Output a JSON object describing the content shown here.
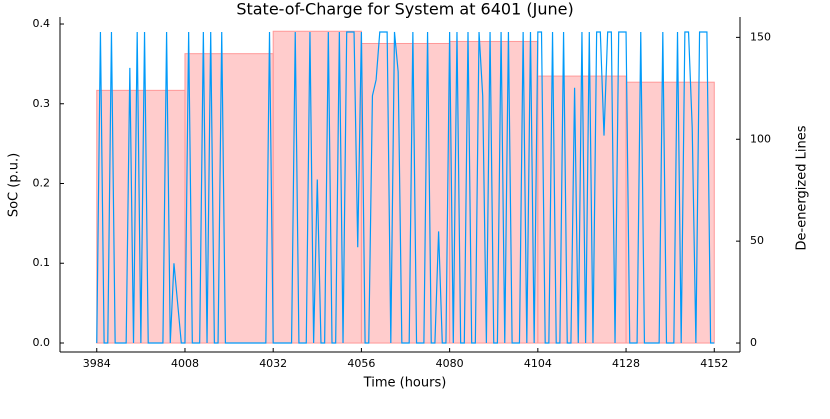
{
  "chart_data": {
    "type": "line",
    "title": "State-of-Charge for System at 6401 (June)",
    "x_label": "Time (hours)",
    "y_label": "SoC (p.u.)",
    "y2_label": "De-energized Lines",
    "xlim": [
      3974,
      4159
    ],
    "xticks": [
      3984,
      4008,
      4032,
      4056,
      4080,
      4104,
      4128,
      4152
    ],
    "ylim": [
      -0.0113,
      0.4088
    ],
    "yticks": [
      {
        "value": 0,
        "label": "0.0"
      },
      0.1,
      0.2,
      0.3,
      0.4
    ],
    "y2lim": [
      -4.4,
      160
    ],
    "y2ticks": [
      0,
      50,
      100,
      150
    ],
    "grid": false,
    "series": [
      {
        "type": "bar",
        "axis": "y2",
        "color": "#ff9999",
        "bins": [
          3984,
          4008,
          4032,
          4056,
          4080,
          4104,
          4128,
          4152
        ],
        "values": [
          124,
          142,
          153,
          147,
          148,
          131,
          128
        ]
      },
      {
        "type": "line",
        "color": "#009af9",
        "x": [
          3984,
          3985,
          3986,
          3987,
          3988,
          3989,
          3990,
          3991,
          3992,
          3993,
          3994,
          3995,
          3996,
          3997,
          3998,
          3999,
          4000,
          4001,
          4002,
          4003,
          4004,
          4005,
          4006,
          4007,
          4008,
          4009,
          4010,
          4011,
          4012,
          4013,
          4014,
          4015,
          4016,
          4017,
          4018,
          4019,
          4020,
          4021,
          4022,
          4023,
          4024,
          4025,
          4026,
          4027,
          4028,
          4029,
          4030,
          4031,
          4032,
          4033,
          4034,
          4035,
          4036,
          4037,
          4038,
          4039,
          4040,
          4041,
          4042,
          4043,
          4044,
          4045,
          4046,
          4047,
          4048,
          4049,
          4050,
          4051,
          4052,
          4053,
          4054,
          4055,
          4056,
          4057,
          4058,
          4059,
          4060,
          4061,
          4062,
          4063,
          4064,
          4065,
          4066,
          4067,
          4068,
          4069,
          4070,
          4071,
          4072,
          4073,
          4074,
          4075,
          4076,
          4077,
          4078,
          4079,
          4080,
          4081,
          4082,
          4083,
          4084,
          4085,
          4086,
          4087,
          4088,
          4089,
          4090,
          4091,
          4092,
          4093,
          4094,
          4095,
          4096,
          4097,
          4098,
          4099,
          4100,
          4101,
          4102,
          4103,
          4104,
          4105,
          4106,
          4107,
          4108,
          4109,
          4110,
          4111,
          4112,
          4113,
          4114,
          4115,
          4116,
          4117,
          4118,
          4119,
          4120,
          4121,
          4122,
          4123,
          4124,
          4125,
          4126,
          4127,
          4128,
          4129,
          4130,
          4131,
          4132,
          4133,
          4134,
          4135,
          4136,
          4137,
          4138,
          4139,
          4140,
          4141,
          4142,
          4143,
          4144,
          4145,
          4146,
          4147,
          4148,
          4149,
          4150,
          4151,
          4152
        ],
        "values": [
          0,
          0.39,
          0,
          0,
          0.39,
          0,
          0,
          0,
          0,
          0.345,
          0,
          0.39,
          0,
          0.39,
          0,
          0,
          0,
          0,
          0,
          0.39,
          0,
          0.1,
          0.05,
          0,
          0,
          0.39,
          0,
          0,
          0,
          0.39,
          0,
          0.39,
          0,
          0,
          0.39,
          0,
          0,
          0,
          0,
          0,
          0,
          0,
          0,
          0,
          0,
          0,
          0,
          0.39,
          0,
          0,
          0,
          0,
          0,
          0,
          0.39,
          0,
          0,
          0,
          0.39,
          0,
          0.205,
          0,
          0,
          0.39,
          0,
          0,
          0.39,
          0,
          0.39,
          0.39,
          0.39,
          0.12,
          0.39,
          0,
          0,
          0.31,
          0.33,
          0.39,
          0.39,
          0.39,
          0,
          0.39,
          0.34,
          0,
          0,
          0,
          0.39,
          0,
          0,
          0,
          0.39,
          0,
          0,
          0.14,
          0,
          0,
          0.39,
          0,
          0.39,
          0,
          0,
          0.39,
          0,
          0,
          0.39,
          0.31,
          0,
          0.39,
          0,
          0,
          0.39,
          0,
          0.39,
          0,
          0,
          0,
          0.39,
          0,
          0.39,
          0,
          0.39,
          0.39,
          0,
          0,
          0.39,
          0,
          0,
          0.39,
          0,
          0,
          0.32,
          0,
          0.39,
          0,
          0.39,
          0,
          0.39,
          0.39,
          0.26,
          0.39,
          0.39,
          0,
          0.39,
          0.39,
          0.39,
          0,
          0,
          0,
          0.39,
          0,
          0,
          0,
          0,
          0,
          0.39,
          0,
          0,
          0,
          0.39,
          0,
          0.39,
          0.39,
          0.27,
          0,
          0.39,
          0.39,
          0.39,
          0,
          0
        ]
      }
    ]
  }
}
